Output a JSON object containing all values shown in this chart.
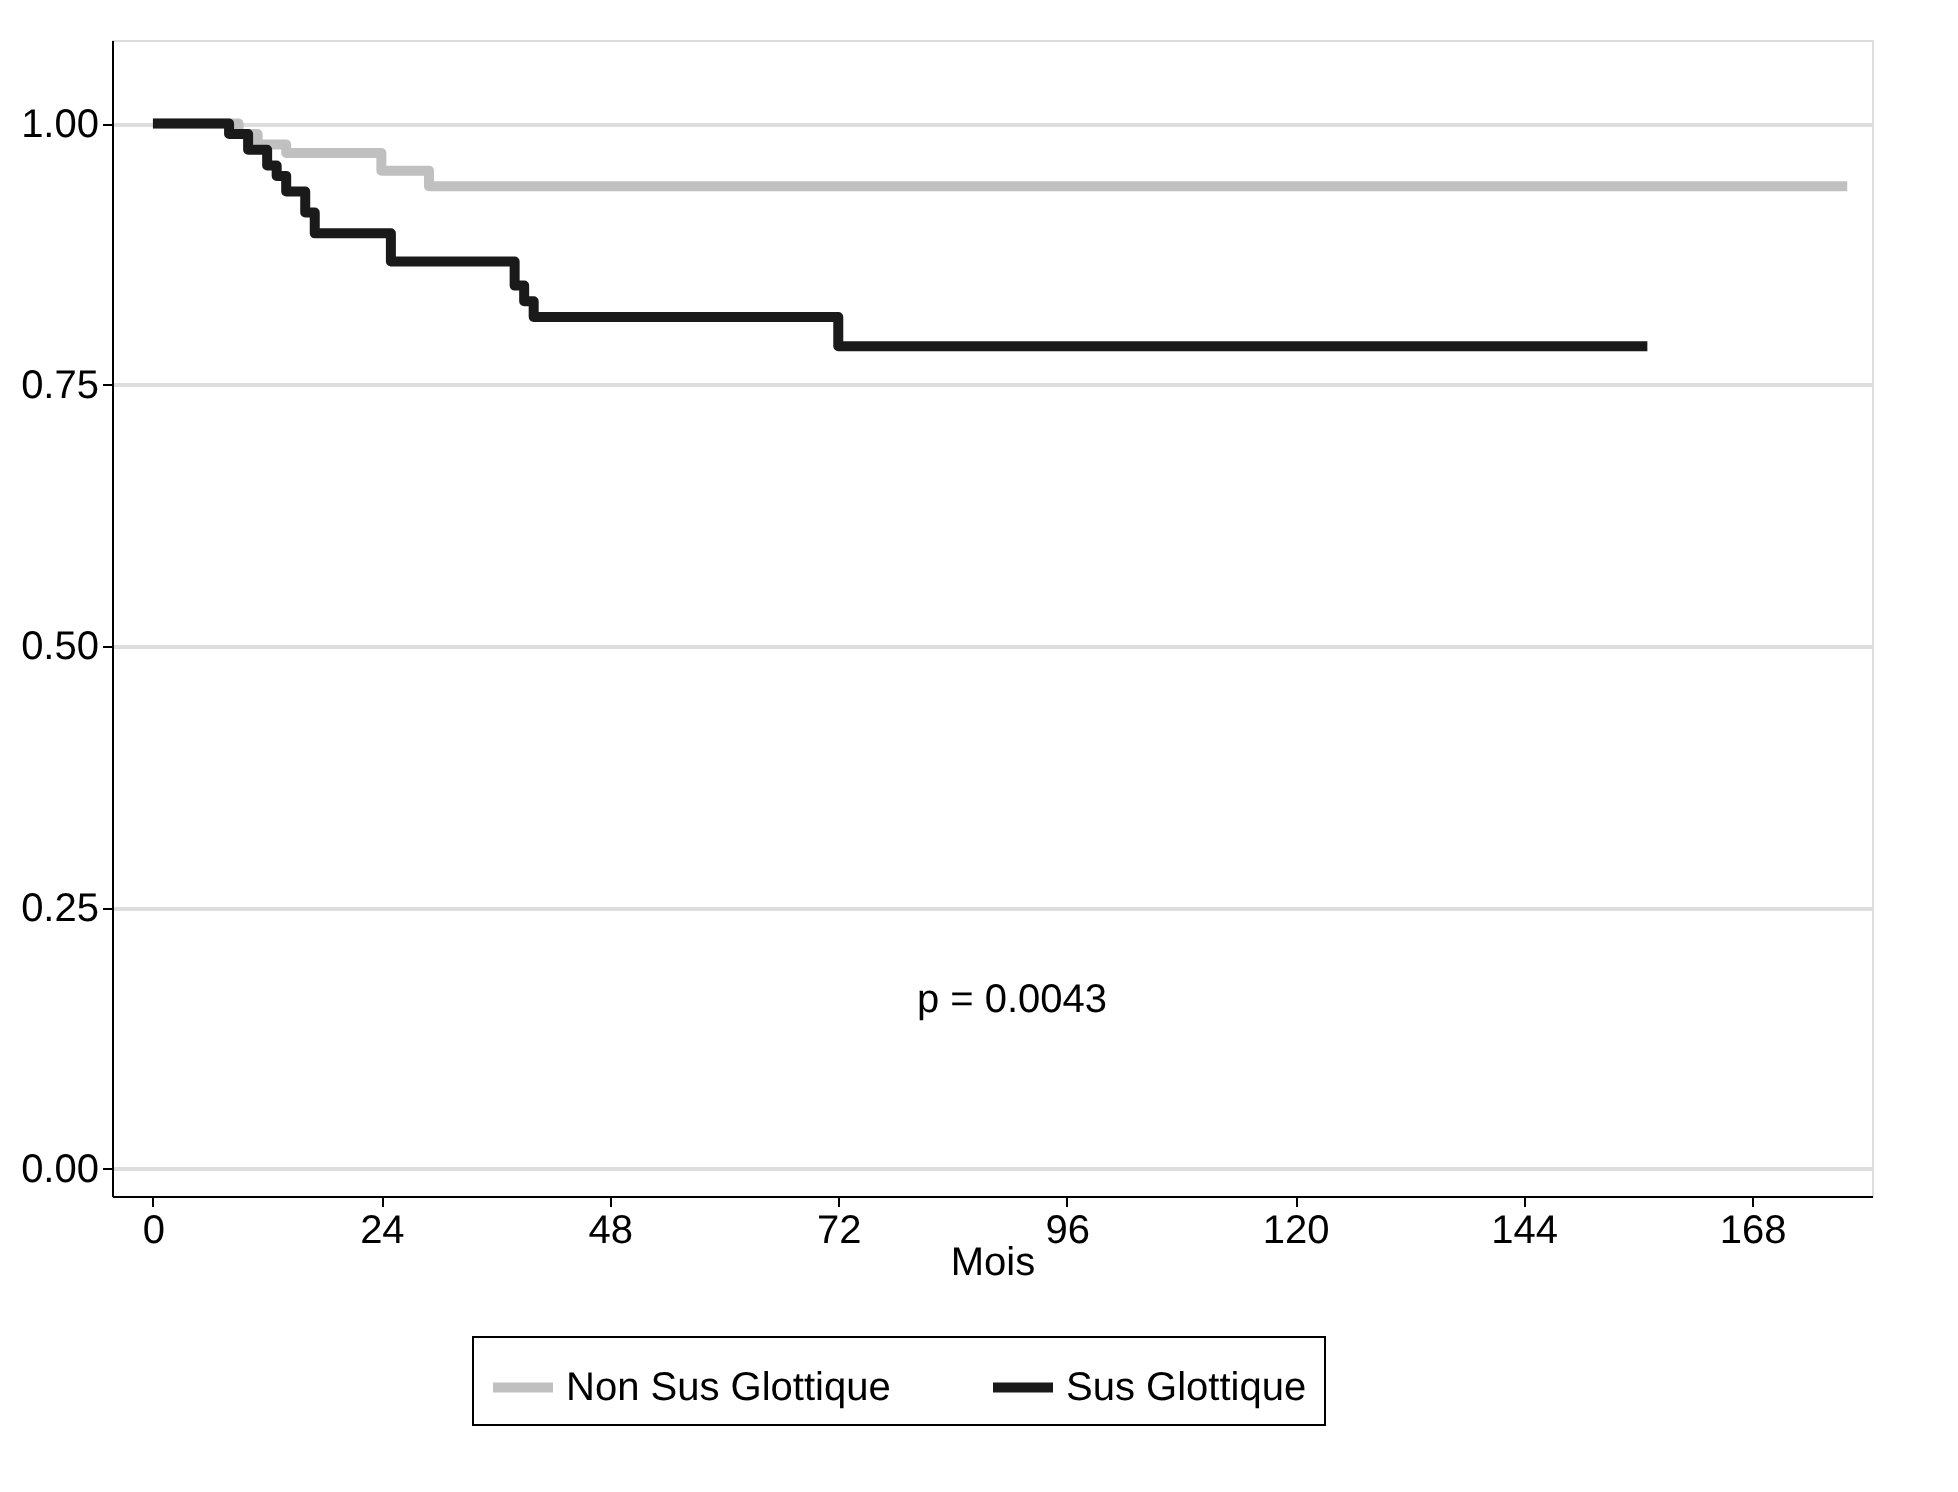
{
  "chart_data": {
    "type": "step",
    "xlabel": "Mois",
    "xlim": [
      -4.3,
      180.6
    ],
    "ylim": [
      -0.026,
      1.08
    ],
    "xticks": [
      0,
      24,
      48,
      72,
      96,
      120,
      144,
      168
    ],
    "yticks": [
      {
        "value": 0,
        "label": "0.00"
      },
      {
        "value": 0.25,
        "label": "0.25"
      },
      {
        "value": 0.5,
        "label": "0.50"
      },
      {
        "value": 0.75,
        "label": "0.75"
      },
      {
        "value": 1,
        "label": "1.00"
      }
    ],
    "grid": "y",
    "legend": "bottom",
    "line_style": "solid",
    "marker": "none",
    "annotations": [
      "p = 0.0043"
    ],
    "series": [
      {
        "name": "Non Sus Glottique",
        "color": "#c0c0c0",
        "x": [
          0,
          9,
          11,
          14,
          24,
          29,
          178
        ],
        "values": [
          1.0,
          0.99,
          0.98,
          0.972,
          0.955,
          0.94,
          0.94
        ]
      },
      {
        "name": "Sus Glottique",
        "color": "#1a1a1a",
        "x": [
          0,
          8,
          10,
          12,
          13,
          14,
          16,
          17,
          25,
          38,
          39,
          40,
          72,
          157
        ],
        "values": [
          1.0,
          0.99,
          0.975,
          0.96,
          0.95,
          0.935,
          0.915,
          0.895,
          0.868,
          0.845,
          0.83,
          0.815,
          0.787,
          0.787
        ]
      }
    ]
  }
}
